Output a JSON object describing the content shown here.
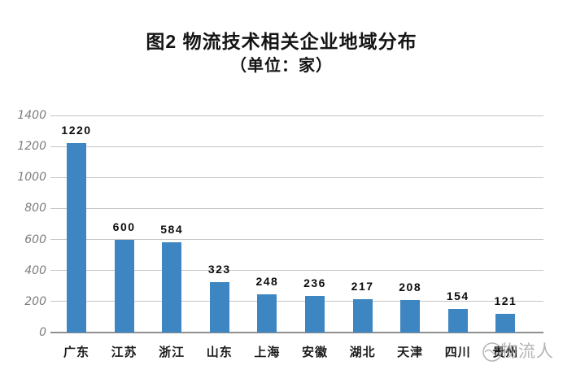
{
  "title": {
    "line1": "图2 物流技术相关企业地域分布",
    "line2": "（单位：家）"
  },
  "chart_data": {
    "type": "bar",
    "title": "图2 物流技术相关企业地域分布",
    "subtitle": "（单位：家）",
    "unit": "家",
    "categories": [
      "广东",
      "江苏",
      "浙江",
      "山东",
      "上海",
      "安徽",
      "湖北",
      "天津",
      "四川",
      "贵州"
    ],
    "values": [
      1220,
      600,
      584,
      323,
      248,
      236,
      217,
      208,
      154,
      121
    ],
    "xlabel": "",
    "ylabel": "",
    "ylim": [
      0,
      1400
    ],
    "yticks": [
      0,
      200,
      400,
      600,
      800,
      1000,
      1200,
      1400
    ],
    "grid": true,
    "legend_position": "none",
    "data_labels": true,
    "bar_color": "#3d86c1"
  },
  "watermark": {
    "text": "物流人",
    "icon": "circle-logo"
  },
  "colors": {
    "bar": "#3d86c1",
    "grid_line": "#c6c6c6",
    "baseline": "#8f8f8f",
    "y_tick_text": "#7e7e7e",
    "label_text": "#1c1c1c",
    "title_text": "#141414",
    "watermark": "#9b9b9b",
    "background": "#ffffff"
  }
}
